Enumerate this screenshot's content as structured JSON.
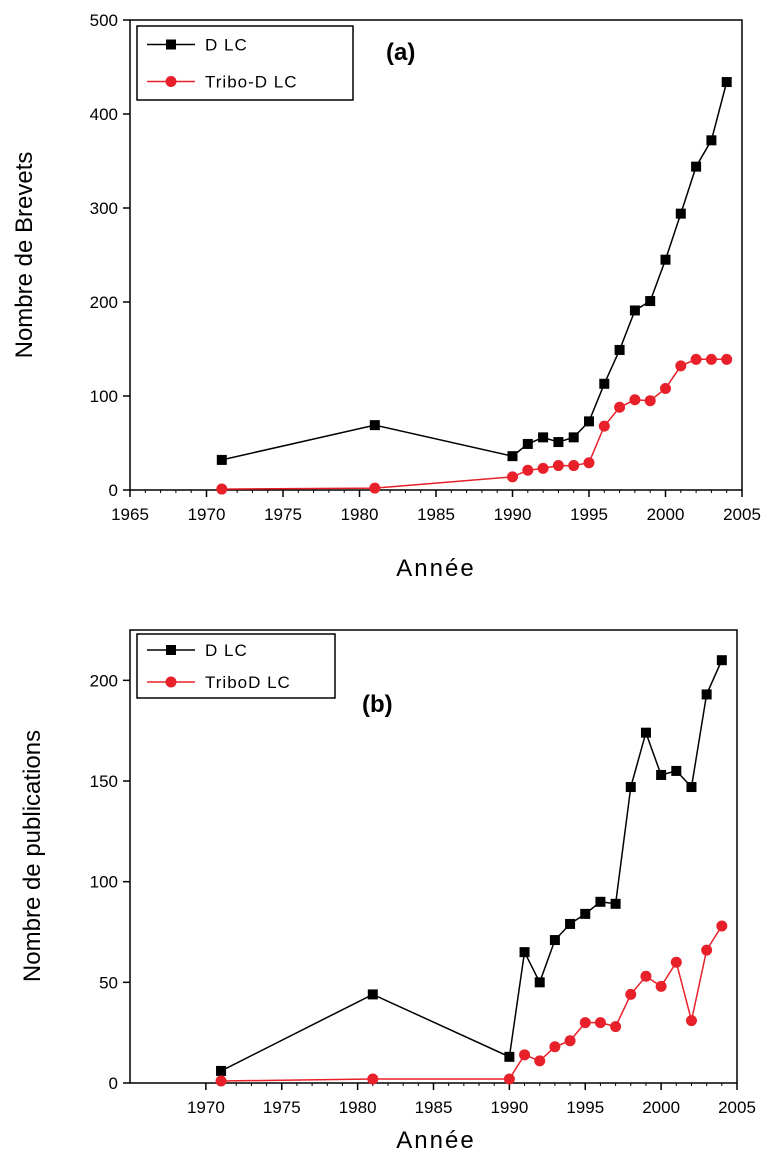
{
  "chart_data": [
    {
      "type": "line",
      "panel_label": "(a)",
      "xlabel": "Année",
      "ylabel": "Nombre de Brevets",
      "xlim": [
        1965,
        2005
      ],
      "ylim": [
        0,
        500
      ],
      "x_ticks": [
        1965,
        1970,
        1975,
        1980,
        1985,
        1990,
        1995,
        2000,
        2005
      ],
      "y_ticks": [
        0,
        100,
        200,
        300,
        400,
        500
      ],
      "legend_position": "top-left",
      "grid": false,
      "series": [
        {
          "name": "D LC",
          "color": "#000000",
          "marker": "square",
          "x": [
            1971,
            1981,
            1990,
            1991,
            1992,
            1993,
            1994,
            1995,
            1996,
            1997,
            1998,
            1999,
            2000,
            2001,
            2002,
            2003,
            2004
          ],
          "y": [
            32,
            69,
            36,
            49,
            56,
            51,
            56,
            73,
            113,
            149,
            191,
            201,
            245,
            294,
            344,
            372,
            434
          ]
        },
        {
          "name": "Tribo-D LC",
          "color": "#e8202a",
          "marker": "circle",
          "x": [
            1971,
            1981,
            1990,
            1991,
            1992,
            1993,
            1994,
            1995,
            1996,
            1997,
            1998,
            1999,
            2000,
            2001,
            2002,
            2003,
            2004
          ],
          "y": [
            1,
            2,
            14,
            21,
            23,
            26,
            26,
            29,
            68,
            88,
            96,
            95,
            108,
            132,
            139,
            139,
            139
          ]
        }
      ]
    },
    {
      "type": "line",
      "panel_label": "(b)",
      "xlabel": "Année",
      "ylabel": "Nombre de publications",
      "xlim": [
        1965,
        2005
      ],
      "ylim": [
        0,
        225
      ],
      "x_ticks": [
        1970,
        1975,
        1980,
        1985,
        1990,
        1995,
        2000,
        2005
      ],
      "y_ticks": [
        0,
        50,
        100,
        150,
        200
      ],
      "legend_position": "top-left",
      "grid": false,
      "series": [
        {
          "name": "D LC",
          "color": "#000000",
          "marker": "square",
          "x": [
            1971,
            1981,
            1990,
            1991,
            1992,
            1993,
            1994,
            1995,
            1996,
            1997,
            1998,
            1999,
            2000,
            2001,
            2002,
            2003,
            2004
          ],
          "y": [
            6,
            44,
            13,
            65,
            50,
            71,
            79,
            84,
            90,
            89,
            147,
            174,
            153,
            155,
            147,
            193,
            210
          ]
        },
        {
          "name": "TriboD LC",
          "color": "#e8202a",
          "marker": "circle",
          "x": [
            1971,
            1981,
            1990,
            1991,
            1992,
            1993,
            1994,
            1995,
            1996,
            1997,
            1998,
            1999,
            2000,
            2001,
            2002,
            2003,
            2004
          ],
          "y": [
            1,
            2,
            2,
            14,
            11,
            18,
            21,
            30,
            30,
            28,
            44,
            53,
            48,
            60,
            31,
            66,
            78
          ]
        }
      ]
    }
  ]
}
